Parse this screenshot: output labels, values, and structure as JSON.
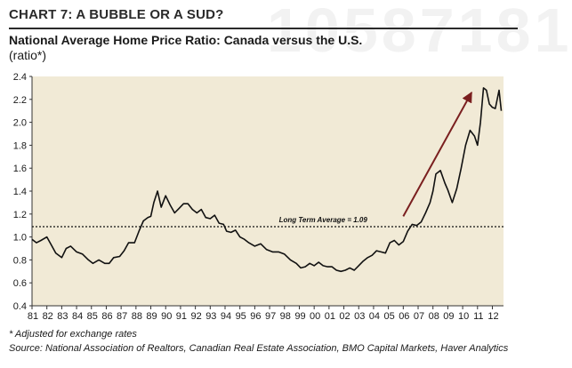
{
  "watermark": {
    "text": "10587181"
  },
  "header": {
    "chart_label": "CHART 7: A BUBBLE OR A SUD?",
    "title": "National Average Home Price Ratio: Canada versus the U.S.",
    "subtitle": "(ratio*)"
  },
  "footnotes": {
    "note": "* Adjusted for exchange rates",
    "source": "Source: National Association of Realtors, Canadian Real Estate Association, BMO Capital Markets, Haver Analytics"
  },
  "colors": {
    "plot_bg": "#f1ead6",
    "line": "#111111",
    "arrow": "#7a1f1f"
  },
  "chart_data": {
    "type": "line",
    "title": "National Average Home Price Ratio: Canada versus the U.S.",
    "ylabel": "(ratio*)",
    "xlim": [
      1981,
      2012.75
    ],
    "ylim": [
      0.4,
      2.4
    ],
    "yticks": [
      0.4,
      0.6,
      0.8,
      1.0,
      1.2,
      1.4,
      1.6,
      1.8,
      2.0,
      2.2,
      2.4
    ],
    "ytick_labels": [
      "0.4",
      "0.6",
      "0.8",
      "1.0",
      "1.2",
      "1.4",
      "1.6",
      "1.8",
      "2.0",
      "2.2",
      "2.4"
    ],
    "xticks": [
      1981,
      1982,
      1983,
      1984,
      1985,
      1986,
      1987,
      1988,
      1989,
      1990,
      1991,
      1992,
      1993,
      1994,
      1995,
      1996,
      1997,
      1998,
      1999,
      2000,
      2001,
      2002,
      2003,
      2004,
      2005,
      2006,
      2007,
      2008,
      2009,
      2010,
      2011,
      2012
    ],
    "xtick_labels": [
      "81",
      "82",
      "83",
      "84",
      "85",
      "86",
      "87",
      "88",
      "89",
      "90",
      "91",
      "92",
      "93",
      "94",
      "95",
      "96",
      "97",
      "98",
      "99",
      "00",
      "01",
      "02",
      "03",
      "04",
      "05",
      "06",
      "07",
      "08",
      "09",
      "10",
      "11",
      "12"
    ],
    "grid": false,
    "legend": "none",
    "reference_line": {
      "y": 1.09,
      "label": "Long Term Average = 1.09",
      "style": "dotted"
    },
    "arrow": {
      "from": [
        2006.0,
        1.18
      ],
      "to": [
        2010.6,
        2.26
      ]
    },
    "series": [
      {
        "x": [
          1981.0,
          1981.3,
          1981.6,
          1982.0,
          1982.3,
          1982.6,
          1983.0,
          1983.3,
          1983.6,
          1984.0,
          1984.4,
          1984.8,
          1985.1,
          1985.5,
          1985.9,
          1986.2,
          1986.5,
          1986.9,
          1987.2,
          1987.5,
          1987.9,
          1988.2,
          1988.5,
          1988.8,
          1989.0,
          1989.2,
          1989.45,
          1989.7,
          1990.0,
          1990.3,
          1990.6,
          1990.9,
          1991.2,
          1991.5,
          1991.8,
          1992.1,
          1992.4,
          1992.7,
          1993.0,
          1993.3,
          1993.6,
          1993.9,
          1994.1,
          1994.4,
          1994.7,
          1995.0,
          1995.3,
          1995.6,
          1996.0,
          1996.4,
          1996.8,
          1997.2,
          1997.6,
          1998.0,
          1998.4,
          1998.8,
          1999.1,
          1999.4,
          1999.7,
          2000.0,
          2000.3,
          2000.6,
          2000.9,
          2001.2,
          2001.5,
          2001.8,
          2002.1,
          2002.4,
          2002.7,
          2003.0,
          2003.3,
          2003.6,
          2003.9,
          2004.2,
          2004.5,
          2004.8,
          2005.1,
          2005.4,
          2005.7,
          2006.0,
          2006.3,
          2006.6,
          2006.9,
          2007.2,
          2007.5,
          2007.8,
          2008.0,
          2008.2,
          2008.5,
          2008.8,
          2009.0,
          2009.3,
          2009.6,
          2009.9,
          2010.2,
          2010.5,
          2010.8,
          2011.0,
          2011.2,
          2011.4,
          2011.6,
          2011.8,
          2012.0,
          2012.2,
          2012.45,
          2012.6
        ],
        "y": [
          0.98,
          0.95,
          0.97,
          1.0,
          0.93,
          0.86,
          0.82,
          0.9,
          0.92,
          0.87,
          0.85,
          0.8,
          0.77,
          0.8,
          0.77,
          0.77,
          0.82,
          0.83,
          0.88,
          0.95,
          0.95,
          1.05,
          1.14,
          1.17,
          1.18,
          1.3,
          1.4,
          1.26,
          1.36,
          1.28,
          1.21,
          1.25,
          1.29,
          1.29,
          1.24,
          1.21,
          1.24,
          1.17,
          1.16,
          1.19,
          1.12,
          1.11,
          1.05,
          1.04,
          1.06,
          1.0,
          0.98,
          0.95,
          0.92,
          0.94,
          0.89,
          0.87,
          0.87,
          0.85,
          0.8,
          0.77,
          0.73,
          0.74,
          0.77,
          0.75,
          0.78,
          0.75,
          0.74,
          0.74,
          0.71,
          0.7,
          0.71,
          0.73,
          0.71,
          0.75,
          0.79,
          0.82,
          0.84,
          0.88,
          0.87,
          0.86,
          0.95,
          0.97,
          0.93,
          0.96,
          1.05,
          1.11,
          1.1,
          1.13,
          1.21,
          1.3,
          1.4,
          1.55,
          1.58,
          1.47,
          1.41,
          1.3,
          1.42,
          1.6,
          1.8,
          1.93,
          1.88,
          1.8,
          2.0,
          2.3,
          2.28,
          2.16,
          2.13,
          2.12,
          2.28,
          2.1
        ]
      }
    ]
  }
}
